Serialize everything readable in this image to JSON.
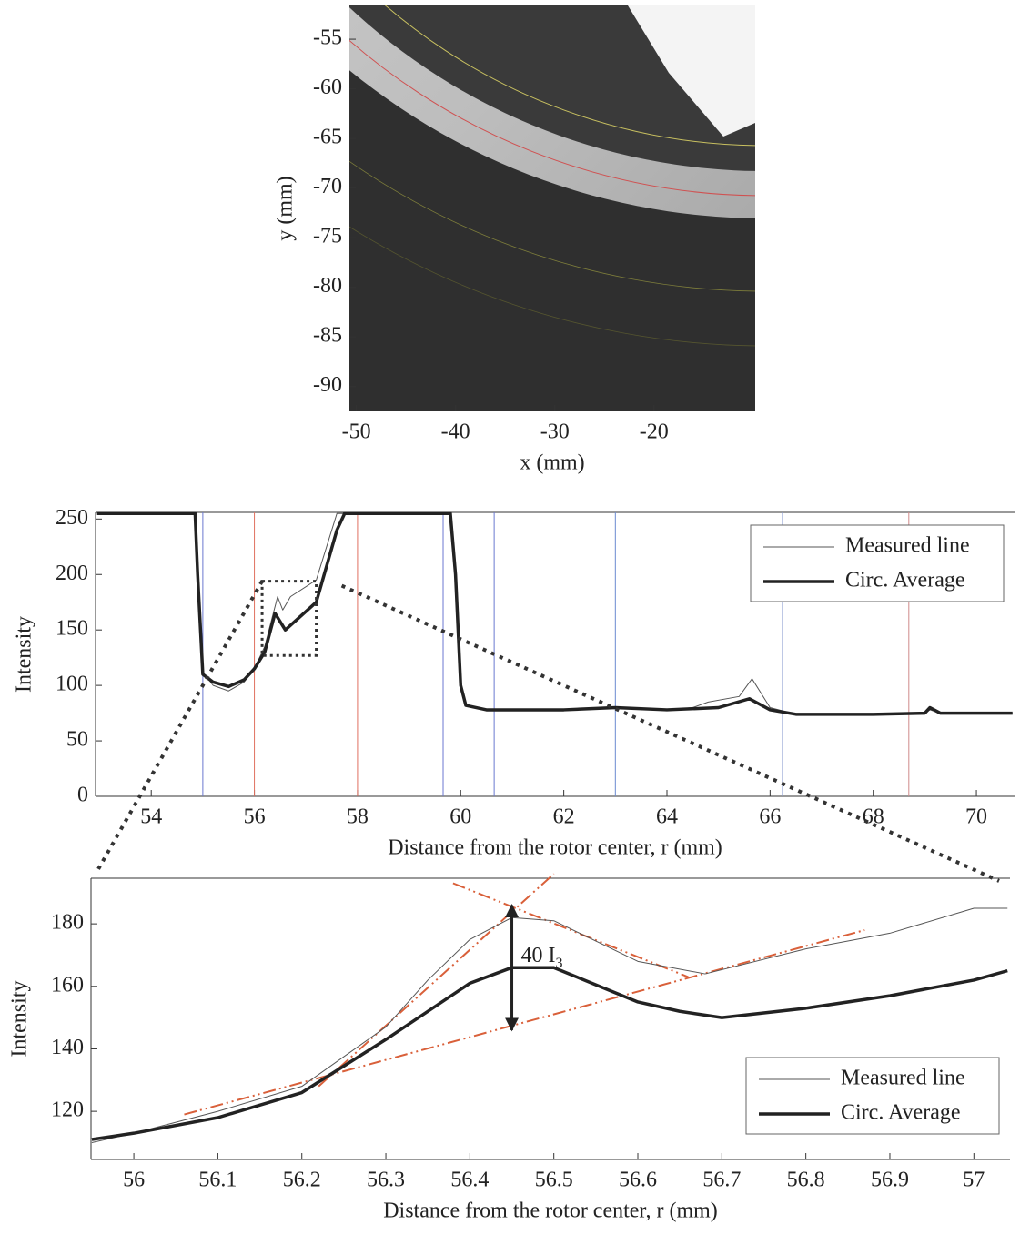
{
  "chart_data": [
    {
      "type": "image",
      "xlabel": "x (mm)",
      "ylabel": "y (mm)",
      "xlim": [
        -50.7,
        -9.8
      ],
      "ylim": [
        -92.5,
        -51.6
      ],
      "xticks": [
        -50,
        -40,
        -30,
        -20
      ],
      "yticks": [
        -55,
        -60,
        -65,
        -70,
        -75,
        -80,
        -85,
        -90
      ]
    },
    {
      "type": "line",
      "xlabel": "Distance from the rotor center, r (mm)",
      "ylabel": "Intensity",
      "xlim": [
        52.92,
        70.74
      ],
      "ylim": [
        0,
        256
      ],
      "xticks": [
        54,
        56,
        58,
        60,
        62,
        64,
        66,
        68,
        70
      ],
      "yticks": [
        0,
        50,
        100,
        150,
        200,
        250
      ],
      "legend": "upper right",
      "series": [
        {
          "name": "Measured line",
          "color": "#555555",
          "linewidth": 1,
          "x": [
            52.95,
            54.85,
            54.9,
            55.0,
            55.2,
            55.5,
            55.8,
            56.0,
            56.2,
            56.45,
            56.55,
            56.7,
            57.2,
            57.6,
            57.75,
            59.8,
            59.9,
            60.0,
            60.1,
            60.5,
            62,
            63,
            64,
            64.5,
            64.8,
            65.4,
            65.65,
            66.0,
            66.5,
            68,
            69,
            69.1,
            69.3,
            70.7
          ],
          "values": [
            255,
            255,
            200,
            112,
            100,
            95,
            103,
            115,
            135,
            180,
            168,
            180,
            195,
            255,
            255,
            255,
            200,
            100,
            82,
            78,
            78,
            80,
            78,
            80,
            85,
            90,
            106,
            80,
            74,
            74,
            75,
            78,
            75,
            75
          ]
        },
        {
          "name": "Circ. Average",
          "color": "#222222",
          "linewidth": 3.5,
          "x": [
            52.95,
            54.85,
            54.9,
            55.0,
            55.2,
            55.5,
            55.8,
            56.0,
            56.2,
            56.4,
            56.6,
            57.2,
            57.6,
            57.75,
            59.8,
            59.9,
            60.0,
            60.1,
            60.5,
            61,
            62,
            63,
            64,
            65,
            65.6,
            66.0,
            66.5,
            68,
            69,
            69.1,
            69.3,
            70.7
          ],
          "values": [
            255,
            255,
            200,
            110,
            103,
            99,
            105,
            115,
            130,
            165,
            150,
            175,
            240,
            255,
            255,
            200,
            100,
            82,
            78,
            78,
            78,
            80,
            78,
            80,
            88,
            78,
            74,
            74,
            75,
            80,
            75,
            75
          ]
        }
      ],
      "vlines": [
        {
          "x": 55.0,
          "color": "#6a78d0"
        },
        {
          "x": 56.0,
          "color": "#e07060"
        },
        {
          "x": 58.0,
          "color": "#e07060"
        },
        {
          "x": 59.66,
          "color": "#6a78d0"
        },
        {
          "x": 60.65,
          "color": "#6a78d0"
        },
        {
          "x": 63.0,
          "color": "#6a8ad0"
        },
        {
          "x": 66.24,
          "color": "#8a9ad0"
        },
        {
          "x": 68.69,
          "color": "#d08a8a"
        }
      ],
      "zoom_box": {
        "x": [
          56.15,
          57.2
        ],
        "y": [
          127,
          194
        ]
      }
    },
    {
      "type": "line",
      "xlabel": "Distance from the rotor center, r (mm)",
      "ylabel": "Intensity",
      "xlim": [
        55.949,
        57.043
      ],
      "ylim": [
        104.6,
        194.6
      ],
      "xticks": [
        56,
        56.1,
        56.2,
        56.3,
        56.4,
        56.5,
        56.6,
        56.7,
        56.8,
        56.9,
        57
      ],
      "yticks": [
        120,
        140,
        160,
        180
      ],
      "legend": "lower right",
      "series": [
        {
          "name": "Measured line",
          "color": "#555555",
          "linewidth": 1,
          "x": [
            55.95,
            56.0,
            56.1,
            56.2,
            56.3,
            56.35,
            56.4,
            56.45,
            56.5,
            56.6,
            56.68,
            56.8,
            56.9,
            57.0,
            57.04
          ],
          "values": [
            110,
            113,
            120,
            128,
            147,
            162,
            175,
            182,
            181,
            168,
            164,
            172,
            177,
            185,
            185
          ]
        },
        {
          "name": "Circ. Average",
          "color": "#222222",
          "linewidth": 3.5,
          "x": [
            55.95,
            56.0,
            56.1,
            56.2,
            56.3,
            56.4,
            56.45,
            56.5,
            56.6,
            56.65,
            56.7,
            56.8,
            56.9,
            57.0,
            57.04
          ],
          "values": [
            111,
            113,
            118,
            126,
            143,
            161,
            166,
            166,
            155,
            152,
            150,
            153,
            157,
            162,
            165
          ]
        }
      ],
      "guides": {
        "color": "#d9603a",
        "lines": [
          {
            "x": [
              56.06,
              56.87
            ],
            "y": [
              119,
              178
            ]
          },
          {
            "x": [
              56.22,
              56.5
            ],
            "y": [
              128,
              196
            ]
          },
          {
            "x": [
              56.38,
              56.66
            ],
            "y": [
              193,
              163
            ]
          }
        ]
      },
      "annotation": {
        "text": "40 I",
        "subscript": "3",
        "arrow": {
          "x": 56.45,
          "y": [
            186,
            146
          ]
        }
      }
    }
  ]
}
